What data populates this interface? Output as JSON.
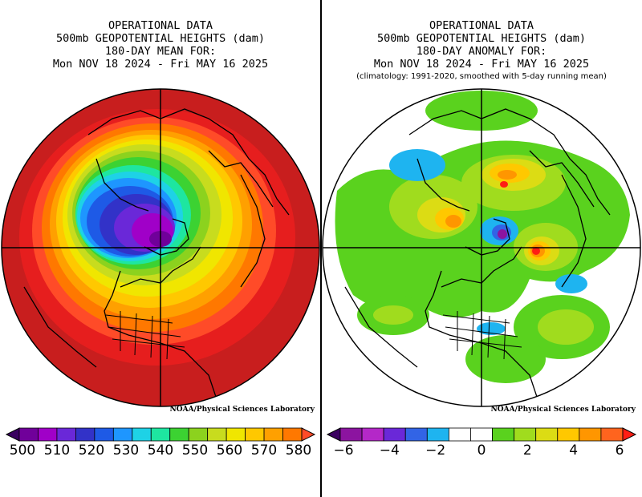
{
  "left_panel": {
    "title_lines": [
      "OPERATIONAL DATA",
      "500mb GEOPOTENTIAL HEIGHTS (dam)",
      "180-DAY MEAN FOR:",
      "Mon NOV 18 2024 - Fri MAY 16 2025"
    ],
    "credit": "NOAA/Physical Sciences Laboratory",
    "colorbar": {
      "colors": [
        "#3a0060",
        "#70009a",
        "#a000c8",
        "#6a28d8",
        "#3232c8",
        "#1e5ae6",
        "#1e96ff",
        "#1ed2e6",
        "#1ee6a0",
        "#3cd232",
        "#8cd21e",
        "#c8dc1e",
        "#f0e600",
        "#ffc800",
        "#ffa000",
        "#ff7800",
        "#ff4b28"
      ],
      "tick_labels": [
        "500",
        "510",
        "520",
        "530",
        "540",
        "550",
        "560",
        "570",
        "580"
      ]
    }
  },
  "right_panel": {
    "title_lines": [
      "OPERATIONAL DATA",
      "500mb GEOPOTENTIAL HEIGHTS (dam)",
      "180-DAY ANOMALY FOR:",
      "Mon NOV 18 2024 - Fri MAY 16 2025"
    ],
    "subtitle": "(climatology: 1991-2020, smoothed with 5-day running mean)",
    "credit": "NOAA/Physical Sciences Laboratory",
    "colorbar": {
      "colors": [
        "#3a0060",
        "#8c14a0",
        "#b428c8",
        "#6a28d8",
        "#3264e6",
        "#1eb4f0",
        "#ffffff",
        "#ffffff",
        "#5ad21e",
        "#a0dc1e",
        "#dcdc14",
        "#ffc800",
        "#ff9600",
        "#ff641e",
        "#ff1e14"
      ],
      "tick_labels": [
        "-6",
        "-4",
        "-2",
        "0",
        "2",
        "4",
        "6"
      ]
    }
  }
}
